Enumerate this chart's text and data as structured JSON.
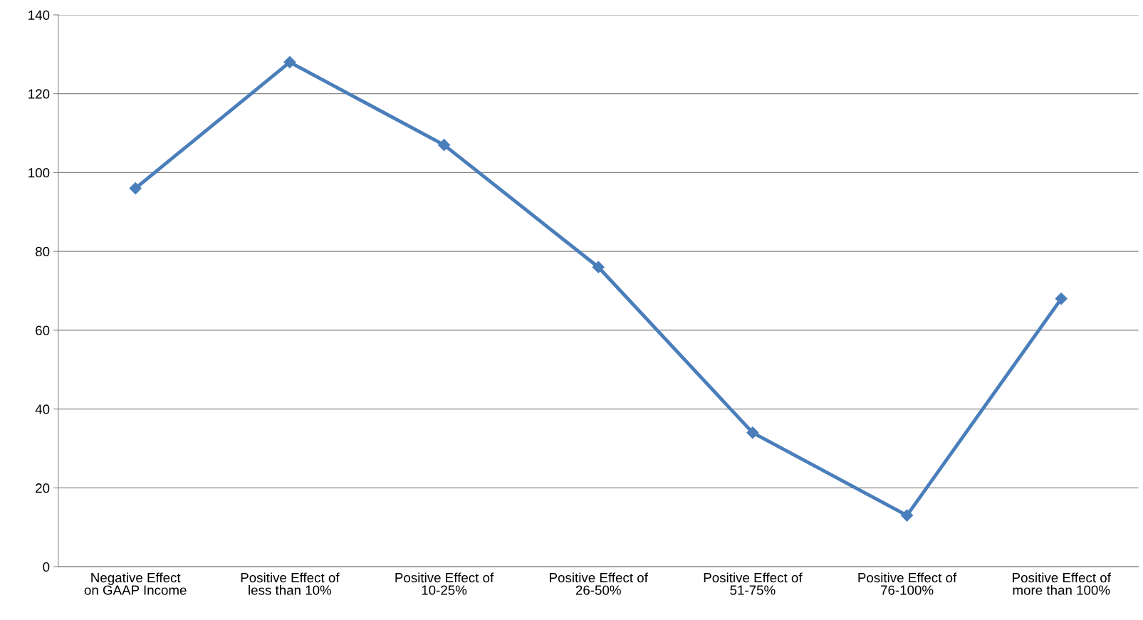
{
  "chart_data": {
    "type": "line",
    "categories": [
      "Negative Effect\non GAAP Income",
      "Positive Effect of\nless than 10%",
      "Positive Effect of\n10-25%",
      "Positive Effect of\n26-50%",
      "Positive Effect of\n51-75%",
      "Positive Effect of\n76-100%",
      "Positive Effect of\nmore than 100%"
    ],
    "series": [
      {
        "color": "#4a7ebb",
        "values": [
          96,
          128,
          107,
          76,
          34,
          13,
          68
        ]
      }
    ],
    "ylim": [
      0,
      140
    ],
    "yticks": [
      0,
      20,
      40,
      60,
      80,
      100,
      120,
      140
    ],
    "grid": "y",
    "legend": false,
    "marker": "diamond",
    "line_style": "solid"
  }
}
